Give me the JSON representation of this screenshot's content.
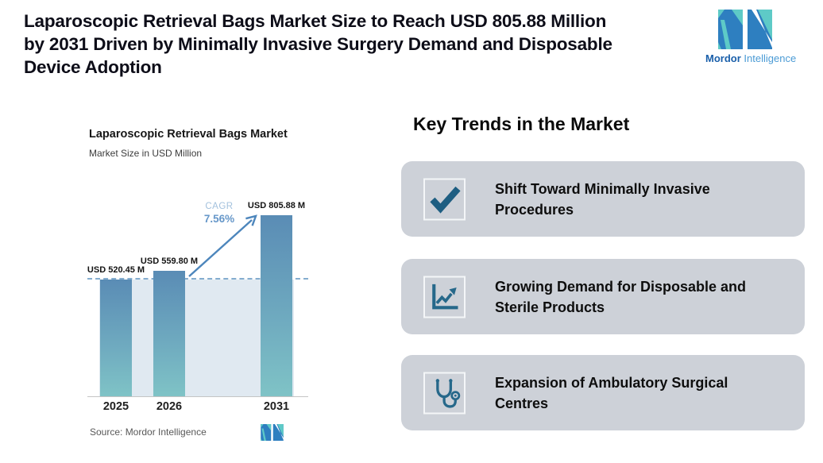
{
  "header": {
    "headline": "Laparoscopic Retrieval Bags Market Size to Reach USD 805.88 Million\nby 2031 Driven by Minimally Invasive Surgery Demand and Disposable\nDevice Adoption",
    "brand": {
      "name_bold": "Mordor",
      "name_light": "Intelligence"
    }
  },
  "chart_data": {
    "type": "bar",
    "title": "Laparoscopic Retrieval Bags Market",
    "subtitle": "Market Size in USD Million",
    "categories": [
      "2025",
      "2026",
      "2031"
    ],
    "values": [
      520.45,
      559.8,
      805.88
    ],
    "data_labels": [
      "USD 520.45 M",
      "USD 559.80 M",
      "USD 805.88 M"
    ],
    "unit": "USD Million",
    "ylim": [
      0,
      805.88
    ],
    "grid": false,
    "legend": "none",
    "annotations": {
      "cagr_label": "CAGR",
      "cagr_value": "7.56%",
      "reference_line_value": 520.45
    },
    "source": "Source: Mordor Intelligence",
    "colors": {
      "bar_top": "#5a8cb5",
      "bar_bottom": "#7fc3c6",
      "reference_line": "#84adcf",
      "plot_fill": "#e0e9f1",
      "cagr_text": "#6697c9"
    }
  },
  "trends": {
    "heading": "Key Trends in the Market",
    "card_color": "#cdd1d8",
    "icon_color": "#26688a",
    "items": [
      {
        "icon": "checkmark-icon",
        "label": "Shift Toward Minimally Invasive\nProcedures"
      },
      {
        "icon": "line-chart-icon",
        "label": "Growing Demand for Disposable and\nSterile Products"
      },
      {
        "icon": "stethoscope-icon",
        "label": "Expansion of Ambulatory Surgical\nCentres"
      }
    ]
  }
}
